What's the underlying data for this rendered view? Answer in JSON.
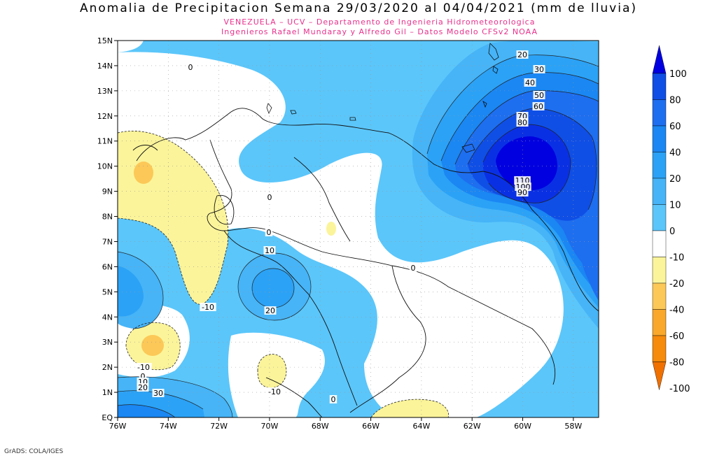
{
  "title": "Anomalia de Precipitacion Semana 29/03/2020 al 04/04/2021 (mm de lluvia)",
  "subtitle1": "VENEZUELA – UCV – Departamento de Ingenieria Hidrometeorologica",
  "subtitle2": "Ingenieros Rafael Mundaray y Alfredo Gil – Datos Modelo CFSv2 NOAA",
  "credit": "GrADS: COLA/IGES",
  "lat_labels": [
    "15N",
    "14N",
    "13N",
    "12N",
    "11N",
    "10N",
    "9N",
    "8N",
    "7N",
    "6N",
    "5N",
    "4N",
    "3N",
    "2N",
    "1N",
    "EQ"
  ],
  "lon_labels": [
    "76W",
    "74W",
    "72W",
    "70W",
    "68W",
    "66W",
    "64W",
    "62W",
    "60W",
    "58W"
  ],
  "contour_labels": [
    "0",
    "20",
    "30",
    "40",
    "50",
    "60",
    "70",
    "80",
    "110",
    "100",
    "90",
    "0",
    "0",
    "10",
    "20",
    "-10",
    "0",
    "-10",
    "0",
    "10",
    "20",
    "30",
    "-10",
    "0"
  ],
  "legend": {
    "labels": [
      "100",
      "80",
      "60",
      "40",
      "20",
      "10",
      "0",
      "-10",
      "-20",
      "-40",
      "-60",
      "-80",
      "-100"
    ],
    "colors": [
      "#0000e0",
      "#0f4fe6",
      "#1e6ef0",
      "#1a87f3",
      "#2ba2f6",
      "#46b4f7",
      "#5bc6fa",
      "#ffffff",
      "#fbf49a",
      "#fcc857",
      "#f9a82b",
      "#f68a0a",
      "#f07000"
    ]
  }
}
